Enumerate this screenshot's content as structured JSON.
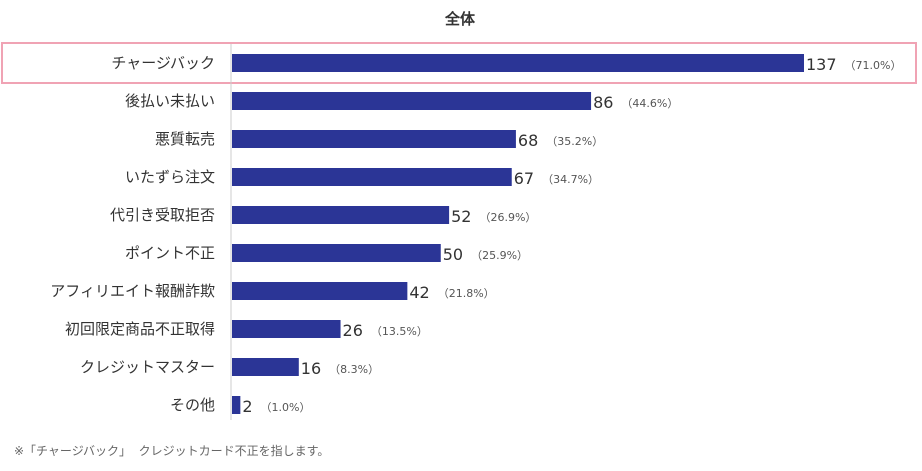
{
  "chart_data": {
    "type": "bar",
    "orientation": "horizontal",
    "title": "全体",
    "categories": [
      "チャージバック",
      "後払い未払い",
      "悪質転売",
      "いたずら注文",
      "代引き受取拒否",
      "ポイント不正",
      "アフィリエイト報酬詐欺",
      "初回限定商品不正取得",
      "クレジットマスター",
      "その他"
    ],
    "values": [
      137,
      86,
      68,
      67,
      52,
      50,
      42,
      26,
      16,
      2
    ],
    "value_labels": [
      "137",
      "86",
      "68",
      "67",
      "52",
      "50",
      "42",
      "26",
      "16",
      "2"
    ],
    "percent_labels": [
      "（71.0%）",
      "（44.6%）",
      "（35.2%）",
      "（34.7%）",
      "（26.9%）",
      "（25.9%）",
      "（21.8%）",
      "（13.5%）",
      "（8.3%）",
      "（1.0%）"
    ],
    "highlight_index": 0,
    "colors": {
      "bar": "#2b3596",
      "highlight": "#f0a3b4",
      "axis": "#cccccc"
    }
  },
  "footnote": "※「チャージバック」  クレジットカード不正を指します。"
}
